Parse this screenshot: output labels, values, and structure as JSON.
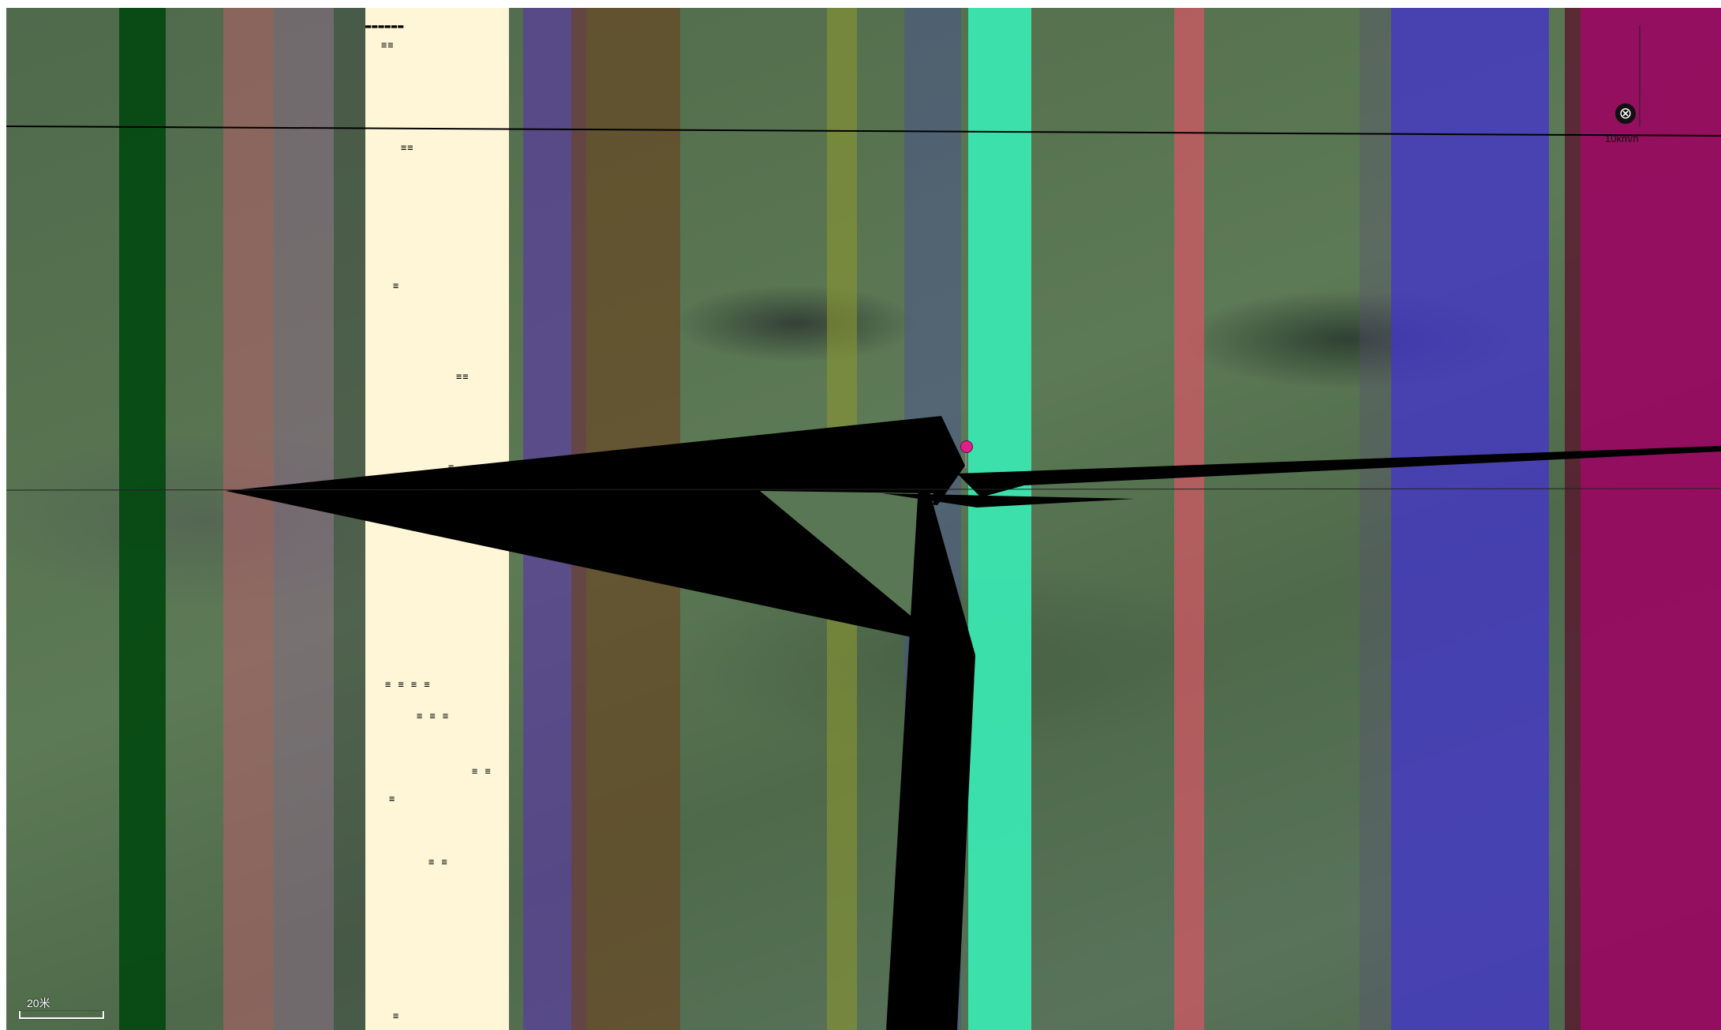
{
  "map": {
    "type": "satellite",
    "scale_label": "20米",
    "corner_label": "10km/h",
    "close_icon": "close-icon",
    "marker_icon": "map-pin-icon",
    "colors": {
      "glitch_dark_green": "#064a12",
      "glitch_pink": "#b0606a",
      "glitch_mauve": "#8c6a88",
      "glitch_cream": "#fef6d6",
      "glitch_violet": "#5a3aa0",
      "glitch_brown": "#6a4420",
      "glitch_olive": "#8a9630",
      "glitch_indigo": "#4a4e9a",
      "glitch_mint": "#3ae6b0",
      "glitch_red": "#d25864",
      "glitch_blue": "#4436c8",
      "glitch_magenta": "#980a60",
      "pin": "#e0208a"
    }
  }
}
